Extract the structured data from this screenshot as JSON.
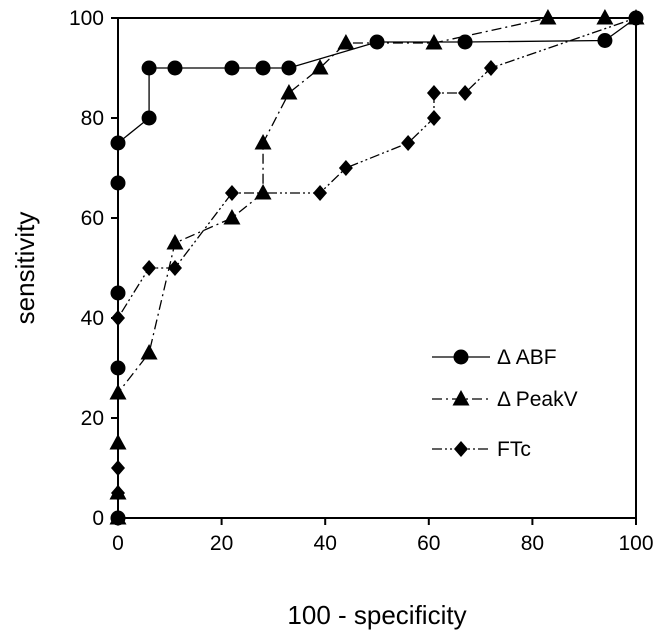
{
  "chart_data": {
    "type": "line",
    "xlabel": "100 - specificity",
    "ylabel": "sensitivity",
    "xlim": [
      0,
      100
    ],
    "ylim": [
      0,
      100
    ],
    "x_ticks": [
      "0",
      "20",
      "40",
      "60",
      "80",
      "100"
    ],
    "y_ticks": [
      "0",
      "20",
      "40",
      "60",
      "80",
      "100"
    ],
    "grid": false,
    "legend_position": "bottom-right",
    "series": [
      {
        "name": "Δ ABF",
        "marker": "circle",
        "line_style": "solid",
        "points": [
          [
            0,
            0
          ],
          [
            0,
            30
          ],
          [
            0,
            45
          ],
          [
            0,
            67
          ],
          [
            0,
            75
          ],
          [
            6,
            80
          ],
          [
            6,
            90
          ],
          [
            11,
            90
          ],
          [
            22,
            90
          ],
          [
            28,
            90
          ],
          [
            33,
            90
          ],
          [
            50,
            95.2
          ],
          [
            67,
            95.2
          ],
          [
            94,
            95.5
          ],
          [
            100,
            100
          ]
        ]
      },
      {
        "name": "Δ PeakV",
        "marker": "triangle",
        "line_style": "dash-dot",
        "points": [
          [
            0,
            0
          ],
          [
            0,
            5
          ],
          [
            0,
            15
          ],
          [
            0,
            25
          ],
          [
            6,
            33
          ],
          [
            11,
            55
          ],
          [
            22,
            60
          ],
          [
            28,
            65
          ],
          [
            28,
            75
          ],
          [
            33,
            85
          ],
          [
            39,
            90
          ],
          [
            44,
            95
          ],
          [
            61,
            95
          ],
          [
            83,
            100
          ],
          [
            94,
            100
          ],
          [
            100,
            100
          ]
        ]
      },
      {
        "name": "FTc",
        "marker": "diamond",
        "line_style": "dash-dot-dot",
        "points": [
          [
            0,
            0
          ],
          [
            0,
            5
          ],
          [
            0,
            10
          ],
          [
            0,
            40
          ],
          [
            6,
            50
          ],
          [
            11,
            50
          ],
          [
            22,
            65
          ],
          [
            39,
            65
          ],
          [
            44,
            70
          ],
          [
            56,
            75
          ],
          [
            61,
            80
          ],
          [
            61,
            85
          ],
          [
            67,
            85
          ],
          [
            72,
            90
          ],
          [
            100,
            100
          ]
        ]
      }
    ]
  }
}
